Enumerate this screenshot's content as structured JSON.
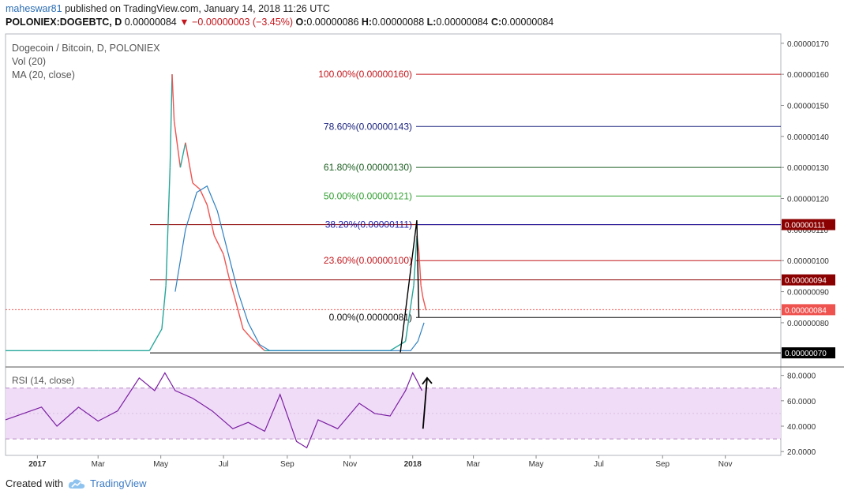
{
  "header": {
    "user": "maheswar81",
    "published": "published on TradingView.com, January 14, 2018 11:26 UTC"
  },
  "ohlc": {
    "symbol": "POLONIEX:DOGEBTC, D",
    "price": "0.00000084",
    "change": "−0.00000003 (−3.45%)",
    "o_label": "O:",
    "o": "0.00000086",
    "h_label": "H:",
    "h": "0.00000088",
    "l_label": "L:",
    "l": "0.00000084",
    "c_label": "C:",
    "c": "0.00000084"
  },
  "footer": {
    "created_with": "Created with",
    "brand": "TradingView"
  },
  "chart_data": {
    "type": "line",
    "price_pane": {
      "legend": [
        "Dogecoin / Bitcoin, D, POLONIEX",
        "Vol (20)",
        "MA (20, close)"
      ],
      "y_ticks": [
        "0.00000170",
        "0.00000160",
        "0.00000150",
        "0.00000140",
        "0.00000130",
        "0.00000120",
        "0.00000110",
        "0.00000100",
        "0.00000090",
        "0.00000080"
      ],
      "y_tick_values": [
        170,
        160,
        150,
        140,
        130,
        120,
        110,
        100,
        90,
        80
      ],
      "ylim": [
        66,
        173
      ],
      "fib_levels": [
        {
          "label": "100.00%(0.00000160)",
          "value": 160,
          "color": "#c4161c"
        },
        {
          "label": "78.60%(0.00000143)",
          "value": 143.2,
          "color": "#1a237e"
        },
        {
          "label": "61.80%(0.00000130)",
          "value": 130,
          "color": "#1b5e20"
        },
        {
          "label": "50.00%(0.00000121)",
          "value": 120.8,
          "color": "#2e9e2e"
        },
        {
          "label": "38.20%(0.00000111)",
          "value": 111.6,
          "color": "#1a1aa8"
        },
        {
          "label": "23.60%(0.00000100)",
          "value": 100,
          "color": "#c4161c"
        },
        {
          "label": "0.00%(0.00000081)",
          "value": 81.7,
          "color": "#111111"
        }
      ],
      "horizontal_lines": [
        {
          "value": 111.6,
          "color": "#8b0000",
          "badge": "0.00000111"
        },
        {
          "value": 93.8,
          "color": "#8b0000",
          "badge": "0.00000094"
        },
        {
          "value": 70.3,
          "color": "#000000",
          "badge": "0.00000070"
        }
      ],
      "last_price": {
        "value": 84.2,
        "badge": "0.00000084",
        "color": "#ef5350"
      },
      "price_series": [
        {
          "date": "2016-12-01",
          "value": 71
        },
        {
          "date": "2017-01-15",
          "value": 71
        },
        {
          "date": "2017-03-01",
          "value": 71
        },
        {
          "date": "2017-04-20",
          "value": 71
        },
        {
          "date": "2017-05-02",
          "value": 78
        },
        {
          "date": "2017-05-06",
          "value": 92
        },
        {
          "date": "2017-05-10",
          "value": 130
        },
        {
          "date": "2017-05-12",
          "value": 160
        },
        {
          "date": "2017-05-14",
          "value": 145
        },
        {
          "date": "2017-05-20",
          "value": 130
        },
        {
          "date": "2017-05-25",
          "value": 138
        },
        {
          "date": "2017-06-01",
          "value": 125
        },
        {
          "date": "2017-06-08",
          "value": 123
        },
        {
          "date": "2017-06-15",
          "value": 118
        },
        {
          "date": "2017-06-22",
          "value": 108
        },
        {
          "date": "2017-07-01",
          "value": 102
        },
        {
          "date": "2017-07-06",
          "value": 95
        },
        {
          "date": "2017-07-12",
          "value": 88
        },
        {
          "date": "2017-07-20",
          "value": 78
        },
        {
          "date": "2017-07-28",
          "value": 75
        },
        {
          "date": "2017-08-10",
          "value": 71
        },
        {
          "date": "2017-09-01",
          "value": 71
        },
        {
          "date": "2017-10-01",
          "value": 71
        },
        {
          "date": "2017-11-01",
          "value": 71
        },
        {
          "date": "2017-12-10",
          "value": 71
        },
        {
          "date": "2017-12-25",
          "value": 74
        },
        {
          "date": "2018-01-02",
          "value": 92
        },
        {
          "date": "2018-01-05",
          "value": 108
        },
        {
          "date": "2018-01-07",
          "value": 103
        },
        {
          "date": "2018-01-09",
          "value": 92
        },
        {
          "date": "2018-01-11",
          "value": 88
        },
        {
          "date": "2018-01-14",
          "value": 84
        }
      ],
      "ma_series": [
        {
          "date": "2017-05-15",
          "value": 90
        },
        {
          "date": "2017-05-25",
          "value": 110
        },
        {
          "date": "2017-06-05",
          "value": 122
        },
        {
          "date": "2017-06-15",
          "value": 124
        },
        {
          "date": "2017-06-25",
          "value": 116
        },
        {
          "date": "2017-07-05",
          "value": 103
        },
        {
          "date": "2017-07-15",
          "value": 90
        },
        {
          "date": "2017-07-25",
          "value": 80
        },
        {
          "date": "2017-08-05",
          "value": 73
        },
        {
          "date": "2017-08-15",
          "value": 71
        },
        {
          "date": "2017-12-30",
          "value": 71
        },
        {
          "date": "2018-01-06",
          "value": 74
        },
        {
          "date": "2018-01-12",
          "value": 80
        }
      ],
      "arrow": {
        "start_date": "2017-12-20",
        "start_value": 70.5,
        "peak_date": "2018-01-05",
        "peak_value": 113,
        "end_date": "2018-01-07",
        "end_value": 81.7
      }
    },
    "rsi_pane": {
      "legend": "RSI (14, close)",
      "y_ticks": [
        "80.0000",
        "60.0000",
        "40.0000",
        "20.0000"
      ],
      "y_tick_values": [
        80,
        60,
        40,
        20
      ],
      "ylim": [
        17,
        86
      ],
      "band": [
        30,
        70
      ],
      "rsi_series": [
        {
          "date": "2016-12-01",
          "value": 45
        },
        {
          "date": "2017-01-05",
          "value": 55
        },
        {
          "date": "2017-01-20",
          "value": 40
        },
        {
          "date": "2017-02-10",
          "value": 55
        },
        {
          "date": "2017-03-01",
          "value": 44
        },
        {
          "date": "2017-03-20",
          "value": 52
        },
        {
          "date": "2017-04-10",
          "value": 78
        },
        {
          "date": "2017-04-25",
          "value": 68
        },
        {
          "date": "2017-05-05",
          "value": 82
        },
        {
          "date": "2017-05-15",
          "value": 68
        },
        {
          "date": "2017-06-01",
          "value": 62
        },
        {
          "date": "2017-06-20",
          "value": 52
        },
        {
          "date": "2017-07-10",
          "value": 38
        },
        {
          "date": "2017-07-25",
          "value": 43
        },
        {
          "date": "2017-08-10",
          "value": 36
        },
        {
          "date": "2017-08-25",
          "value": 65
        },
        {
          "date": "2017-09-10",
          "value": 28
        },
        {
          "date": "2017-09-20",
          "value": 23
        },
        {
          "date": "2017-10-01",
          "value": 45
        },
        {
          "date": "2017-10-20",
          "value": 38
        },
        {
          "date": "2017-11-10",
          "value": 58
        },
        {
          "date": "2017-11-25",
          "value": 50
        },
        {
          "date": "2017-12-10",
          "value": 48
        },
        {
          "date": "2017-12-25",
          "value": 68
        },
        {
          "date": "2018-01-01",
          "value": 82
        },
        {
          "date": "2018-01-05",
          "value": 76
        },
        {
          "date": "2018-01-10",
          "value": 68
        }
      ],
      "arrow": {
        "start_date": "2018-01-11",
        "start_value": 38,
        "end_date": "2018-01-15",
        "end_value": 78
      }
    },
    "x_ticks": [
      {
        "label": "2017",
        "date": "2017-01-01"
      },
      {
        "label": "Mar",
        "date": "2017-03-01"
      },
      {
        "label": "May",
        "date": "2017-05-01"
      },
      {
        "label": "Jul",
        "date": "2017-07-01"
      },
      {
        "label": "Sep",
        "date": "2017-09-01"
      },
      {
        "label": "Nov",
        "date": "2017-11-01"
      },
      {
        "label": "2018",
        "date": "2018-01-01"
      },
      {
        "label": "Mar",
        "date": "2018-03-01"
      },
      {
        "label": "May",
        "date": "2018-05-01"
      },
      {
        "label": "Jul",
        "date": "2018-07-01"
      },
      {
        "label": "Sep",
        "date": "2018-09-01"
      },
      {
        "label": "Nov",
        "date": "2018-11-01"
      }
    ],
    "xlim": [
      "2016-12-01",
      "2018-12-25"
    ],
    "colors": {
      "fib_red": "#c4161c",
      "ma": "#2d7fc1",
      "rsi": "#7b1fa2",
      "rsi_band": "#f0dcf7"
    }
  }
}
